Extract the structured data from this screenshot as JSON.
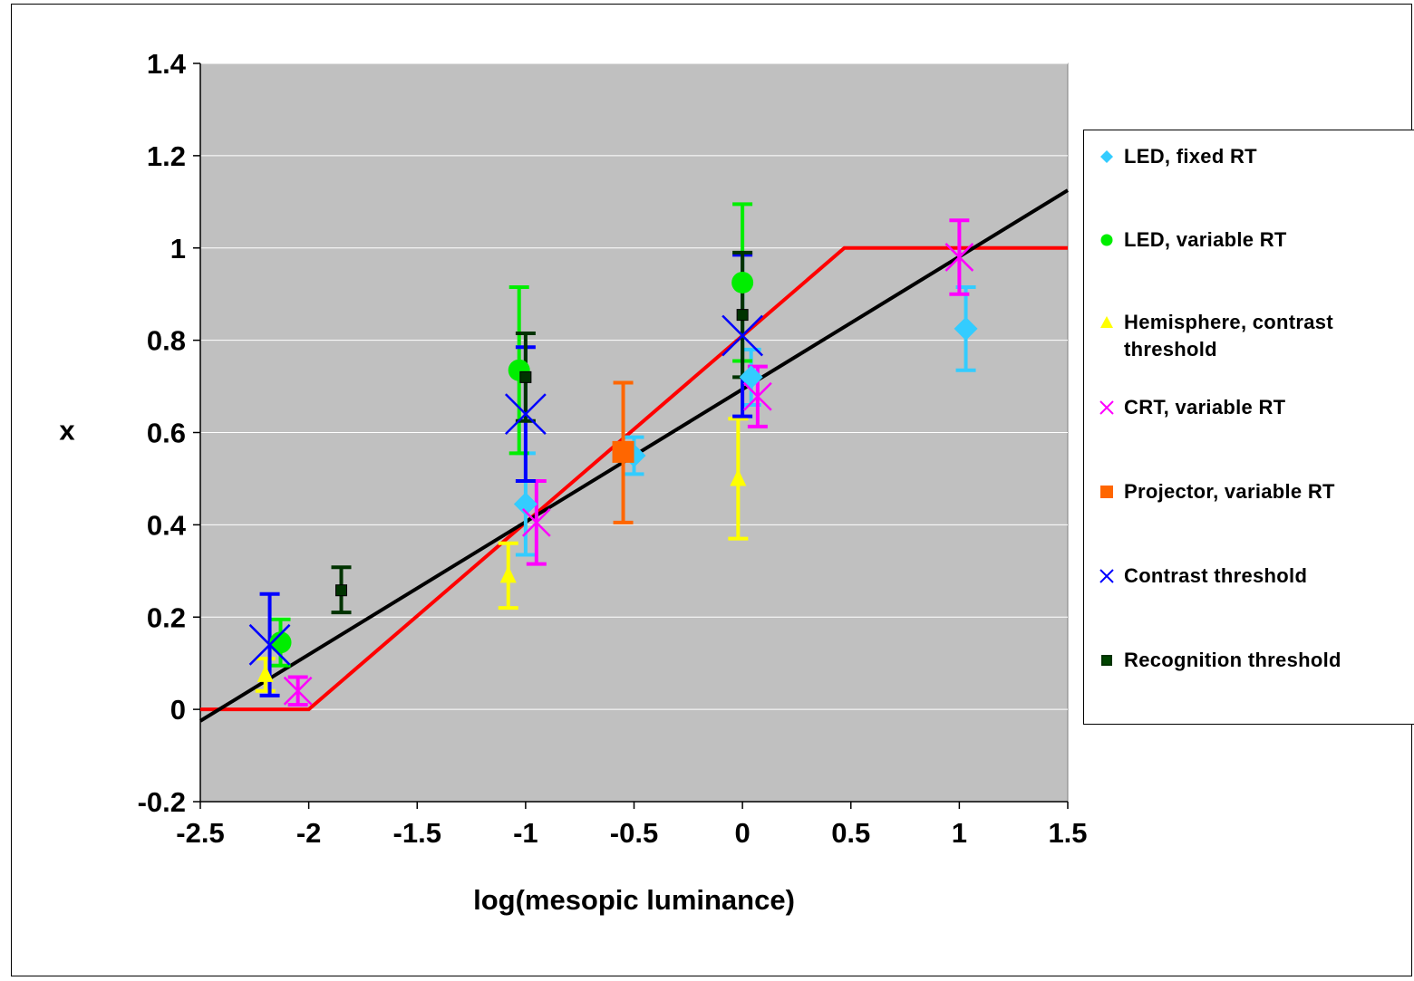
{
  "chart_data": {
    "type": "scatter",
    "xlabel": "log(mesopic luminance)",
    "ylabel": "x",
    "xlim": [
      -2.5,
      1.5
    ],
    "ylim": [
      -0.2,
      1.4
    ],
    "xticks": [
      -2.5,
      -2,
      -1.5,
      -1,
      -0.5,
      0,
      0.5,
      1,
      1.5
    ],
    "xtick_labels": [
      "-2.5",
      "-2",
      "-1.5",
      "-1",
      "-0.5",
      "0",
      "0.5",
      "1",
      "1.5"
    ],
    "yticks": [
      -0.2,
      0,
      0.2,
      0.4,
      0.6,
      0.8,
      1,
      1.2,
      1.4
    ],
    "ytick_labels": [
      "-0.2",
      "0",
      "0.2",
      "0.4",
      "0.6",
      "0.8",
      "1",
      "1.2",
      "1.4"
    ],
    "grid": "horizontal",
    "plot_background": "#c0c0c0",
    "legend_position": "right",
    "series": [
      {
        "name": "LED, fixed RT",
        "marker": "diamond",
        "color": "#33ccff",
        "points": [
          {
            "x": -1.0,
            "y": 0.445,
            "lo": 0.335,
            "hi": 0.555
          },
          {
            "x": -0.5,
            "y": 0.55,
            "lo": 0.51,
            "hi": 0.59
          },
          {
            "x": 0.04,
            "y": 0.72,
            "lo": 0.66,
            "hi": 0.78
          },
          {
            "x": 1.03,
            "y": 0.825,
            "lo": 0.735,
            "hi": 0.915
          }
        ]
      },
      {
        "name": "LED, variable RT",
        "marker": "circle",
        "color": "#00ee00",
        "points": [
          {
            "x": -2.13,
            "y": 0.145,
            "lo": 0.095,
            "hi": 0.195
          },
          {
            "x": -1.03,
            "y": 0.735,
            "lo": 0.555,
            "hi": 0.915
          },
          {
            "x": 0.0,
            "y": 0.925,
            "lo": 0.755,
            "hi": 1.095
          }
        ]
      },
      {
        "name": "Hemisphere, contrast threshold",
        "marker": "triangle",
        "color": "#ffff00",
        "points": [
          {
            "x": -2.2,
            "y": 0.075,
            "lo": 0.04,
            "hi": 0.11
          },
          {
            "x": -1.08,
            "y": 0.29,
            "lo": 0.22,
            "hi": 0.36
          },
          {
            "x": -0.02,
            "y": 0.5,
            "lo": 0.37,
            "hi": 0.63
          }
        ]
      },
      {
        "name": "CRT, variable RT",
        "marker": "x",
        "color": "#ff00ff",
        "points": [
          {
            "x": -2.05,
            "y": 0.04,
            "lo": 0.01,
            "hi": 0.07
          },
          {
            "x": -0.95,
            "y": 0.405,
            "lo": 0.315,
            "hi": 0.495
          },
          {
            "x": 0.07,
            "y": 0.678,
            "lo": 0.613,
            "hi": 0.743
          },
          {
            "x": 1.0,
            "y": 0.98,
            "lo": 0.9,
            "hi": 1.06
          }
        ]
      },
      {
        "name": "Projector, variable RT",
        "marker": "square",
        "color": "#ff6600",
        "points": [
          {
            "x": -0.55,
            "y": 0.558,
            "lo": 0.405,
            "hi": 0.708
          }
        ]
      },
      {
        "name": "Contrast threshold",
        "marker": "x",
        "color": "#0000ff",
        "points": [
          {
            "x": -2.18,
            "y": 0.14,
            "lo": 0.03,
            "hi": 0.25
          },
          {
            "x": -1.0,
            "y": 0.64,
            "lo": 0.495,
            "hi": 0.785
          },
          {
            "x": 0.0,
            "y": 0.81,
            "lo": 0.635,
            "hi": 0.985
          }
        ]
      },
      {
        "name": "Recognition threshold",
        "marker": "square",
        "color": "#003300",
        "points": [
          {
            "x": -1.85,
            "y": 0.258,
            "lo": 0.21,
            "hi": 0.308
          },
          {
            "x": -1.0,
            "y": 0.72,
            "lo": 0.625,
            "hi": 0.815
          },
          {
            "x": 0.0,
            "y": 0.855,
            "lo": 0.72,
            "hi": 0.99
          }
        ]
      }
    ],
    "lines": [
      {
        "color": "#ff0000",
        "points": [
          [
            -2.5,
            0
          ],
          [
            -2.0,
            0
          ],
          [
            0.47,
            1.0
          ],
          [
            1.5,
            1.0
          ]
        ]
      },
      {
        "color": "#000000",
        "points": [
          [
            -2.5,
            -0.025
          ],
          [
            1.5,
            1.125
          ]
        ]
      }
    ]
  }
}
